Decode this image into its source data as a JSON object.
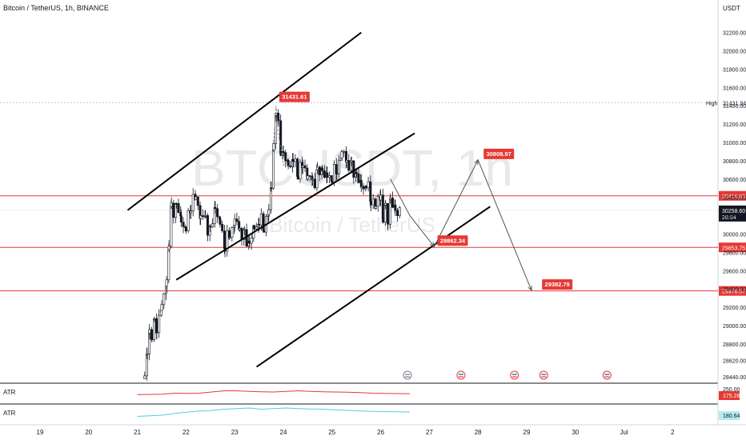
{
  "header": {
    "symbol_title": "Bitcoin / TetherUS, 1h, BINANCE",
    "currency": "USDT"
  },
  "watermark": {
    "ticker": "BTCUSDT, 1h",
    "name": "Bitcoin / TetherUS"
  },
  "colors": {
    "bull": "#26a69a",
    "candle": "#131722",
    "level_line": "#e53935",
    "label_red": "#e53935",
    "label_dark": "#131722",
    "atr_red": "#e53935",
    "atr_cyan": "#4dd0e1",
    "trend": "#000000",
    "projection": "#555555"
  },
  "chart_data": [
    {
      "type": "candlestick",
      "title": "Bitcoin / TetherUS, 1h, BINANCE",
      "ylabel": "USDT",
      "ylim": [
        28380,
        32380
      ],
      "y_ticks": [
        32200,
        32000,
        31800,
        31600,
        31400,
        31200,
        31000,
        30800,
        30600,
        30400,
        30200,
        30000,
        29800,
        29600,
        29400,
        29200,
        29000,
        28800,
        28620,
        28440
      ],
      "x_ticks": [
        "19",
        "20",
        "21",
        "22",
        "23",
        "24",
        "25",
        "26",
        "27",
        "28",
        "29",
        "30",
        "Jul",
        "2"
      ],
      "close_path": [
        [
          21.15,
          28420
        ],
        [
          21.2,
          28700
        ],
        [
          21.25,
          28950
        ],
        [
          21.3,
          28900
        ],
        [
          21.35,
          28980
        ],
        [
          21.4,
          29000
        ],
        [
          21.5,
          29200
        ],
        [
          21.6,
          29500
        ],
        [
          21.65,
          29900
        ],
        [
          21.7,
          30250
        ],
        [
          21.8,
          30300
        ],
        [
          21.9,
          30150
        ],
        [
          22.0,
          30050
        ],
        [
          22.1,
          30350
        ],
        [
          22.2,
          30400
        ],
        [
          22.3,
          30200
        ],
        [
          22.4,
          30150
        ],
        [
          22.5,
          30000
        ],
        [
          22.6,
          30300
        ],
        [
          22.7,
          30100
        ],
        [
          22.8,
          29900
        ],
        [
          22.9,
          30000
        ],
        [
          23.0,
          30150
        ],
        [
          23.1,
          30050
        ],
        [
          23.2,
          29950
        ],
        [
          23.3,
          29900
        ],
        [
          23.4,
          30050
        ],
        [
          23.5,
          30150
        ],
        [
          23.6,
          30100
        ],
        [
          23.7,
          30250
        ],
        [
          23.75,
          30500
        ],
        [
          23.8,
          31000
        ],
        [
          23.85,
          31350
        ],
        [
          23.9,
          31150
        ],
        [
          23.95,
          30950
        ],
        [
          24.0,
          30850
        ],
        [
          24.1,
          30750
        ],
        [
          24.2,
          30800
        ],
        [
          24.3,
          30700
        ],
        [
          24.4,
          30750
        ],
        [
          24.5,
          30650
        ],
        [
          24.6,
          30550
        ],
        [
          24.7,
          30650
        ],
        [
          24.8,
          30700
        ],
        [
          24.9,
          30600
        ],
        [
          25.0,
          30650
        ],
        [
          25.1,
          30700
        ],
        [
          25.2,
          30900
        ],
        [
          25.3,
          30800
        ],
        [
          25.4,
          30700
        ],
        [
          25.5,
          30650
        ],
        [
          25.6,
          30500
        ],
        [
          25.7,
          30550
        ],
        [
          25.8,
          30400
        ],
        [
          25.9,
          30300
        ],
        [
          26.0,
          30450
        ],
        [
          26.05,
          30150
        ],
        [
          26.1,
          30250
        ],
        [
          26.15,
          30200
        ],
        [
          26.2,
          30350
        ],
        [
          26.3,
          30250
        ],
        [
          26.4,
          30258.6
        ]
      ],
      "chart_high": 31431.94,
      "high_label": "High",
      "current_price": 30258.6,
      "countdown": "26:04",
      "levels": [
        {
          "label": "30416.83",
          "value": 30416.83
        },
        {
          "label": "29853.75",
          "value": 29853.75
        },
        {
          "label": "29378.57",
          "value": 29378.57
        }
      ],
      "price_labels": [
        {
          "label": "31431.61",
          "x": 23.85,
          "y": 31431.61
        },
        {
          "label": "29862.34",
          "x": 27.1,
          "y": 29862.34
        },
        {
          "label": "30808.97",
          "x": 28.05,
          "y": 30808.97
        },
        {
          "label": "29382.79",
          "x": 29.25,
          "y": 29382.79
        }
      ],
      "projection_path": [
        [
          26.6,
          30200
        ],
        [
          27.1,
          29862.34
        ],
        [
          28.0,
          30808.97
        ],
        [
          29.1,
          29382.79
        ]
      ],
      "pattern_path": [
        [
          26.2,
          30600
        ],
        [
          26.6,
          30200
        ]
      ],
      "trend_lines": [
        {
          "name": "upper channel top",
          "from": [
            20.8,
            30260
          ],
          "to": [
            25.6,
            32200
          ]
        },
        {
          "name": "upper channel bottom",
          "from": [
            21.8,
            29500
          ],
          "to": [
            26.7,
            31100
          ]
        },
        {
          "name": "lower channel line",
          "from": [
            23.45,
            28550
          ],
          "to": [
            28.25,
            30300
          ]
        }
      ],
      "events": [
        26.55,
        27.65,
        28.75,
        29.35,
        30.65
      ]
    },
    {
      "type": "line",
      "title": "ATR",
      "series": [
        {
          "values": [
            18,
            20,
            22,
            30,
            28,
            30,
            40,
            50,
            50,
            45,
            42,
            40,
            45,
            50,
            45,
            42,
            40,
            38,
            35,
            30,
            28,
            27,
            26
          ]
        }
      ],
      "value_label": "175.28",
      "tick_label": "250.00"
    },
    {
      "type": "line",
      "title": "ATR",
      "series": [
        {
          "values": [
            10,
            15,
            20,
            35,
            45,
            55,
            60,
            70,
            75,
            80,
            70,
            75,
            80,
            75,
            72,
            70,
            65,
            60,
            55,
            52,
            50,
            48,
            46
          ]
        }
      ],
      "value_label": "180.64"
    }
  ]
}
